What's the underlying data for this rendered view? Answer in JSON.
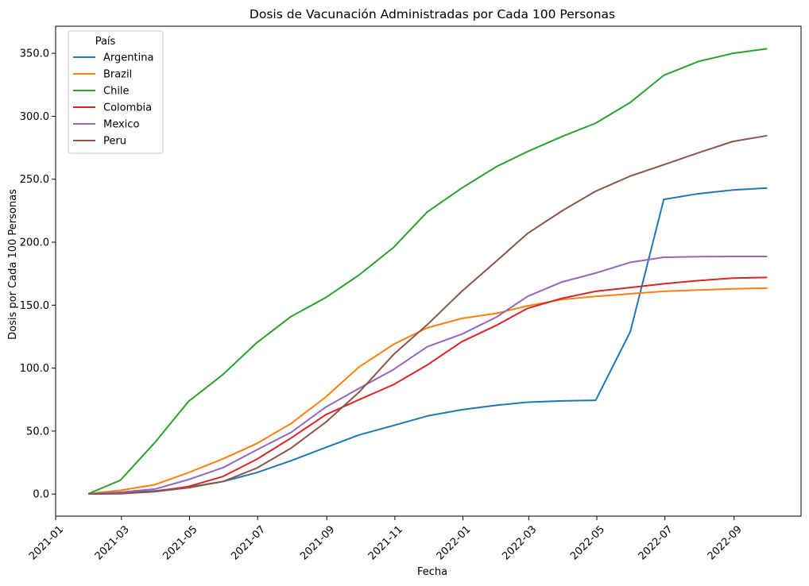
{
  "chart_data": {
    "type": "line",
    "title": "Dosis de Vacunación Administradas por Cada 100 Personas",
    "xlabel": "Fecha",
    "ylabel": "Dosis por Cada 100 Personas",
    "x_ticks": [
      "2021-01",
      "2021-03",
      "2021-05",
      "2021-07",
      "2021-09",
      "2021-11",
      "2022-01",
      "2022-03",
      "2022-05",
      "2022-07",
      "2022-09"
    ],
    "y_ticks": [
      "0.0",
      "50.0",
      "100.0",
      "150.0",
      "200.0",
      "250.0",
      "300.0",
      "350.0"
    ],
    "xlim": [
      "2021-01-01",
      "2022-10-31"
    ],
    "ylim": [
      -17.5,
      371.5
    ],
    "grid": false,
    "legend": {
      "title": "País",
      "position": "top-left"
    },
    "x": [
      "2021-01-31",
      "2021-02-28",
      "2021-03-31",
      "2021-04-30",
      "2021-05-31",
      "2021-06-30",
      "2021-07-31",
      "2021-08-31",
      "2021-09-30",
      "2021-10-31",
      "2021-11-30",
      "2021-12-31",
      "2022-01-31",
      "2022-02-28",
      "2022-03-31",
      "2022-04-30",
      "2022-05-31",
      "2022-06-30",
      "2022-07-31",
      "2022-08-31",
      "2022-09-30"
    ],
    "series": [
      {
        "name": "Argentina",
        "color": "#1f77b4",
        "values": [
          0.2,
          1.0,
          2.5,
          5.5,
          10.0,
          17.0,
          26.5,
          37.0,
          47.0,
          54.5,
          62.0,
          67.0,
          70.5,
          73.0,
          74.0,
          74.5,
          129.0,
          234.0,
          238.5,
          241.5,
          243.0
        ]
      },
      {
        "name": "Brazil",
        "color": "#ff7f0e",
        "values": [
          0.3,
          3.0,
          7.5,
          17.0,
          28.0,
          40.0,
          56.0,
          77.0,
          101.0,
          119.0,
          132.0,
          139.5,
          143.5,
          149.5,
          154.5,
          157.0,
          159.0,
          161.0,
          162.0,
          163.0,
          163.5
        ]
      },
      {
        "name": "Chile",
        "color": "#2ca02c",
        "values": [
          0.5,
          11.0,
          41.0,
          73.5,
          95.0,
          120.0,
          141.0,
          156.0,
          174.0,
          196.0,
          224.0,
          243.0,
          260.0,
          272.0,
          284.0,
          294.5,
          311.0,
          332.5,
          343.5,
          350.0,
          353.5
        ]
      },
      {
        "name": "Colombia",
        "color": "#d62728",
        "values": [
          0.2,
          0.5,
          2.0,
          6.0,
          14.0,
          27.5,
          44.5,
          63.0,
          75.0,
          87.0,
          102.5,
          121.0,
          134.0,
          147.5,
          155.5,
          161.0,
          164.0,
          167.0,
          169.5,
          171.5,
          172.0
        ]
      },
      {
        "name": "Mexico",
        "color": "#9467bd",
        "values": [
          0.2,
          1.5,
          4.0,
          11.5,
          21.0,
          35.0,
          49.0,
          69.0,
          84.0,
          99.0,
          117.0,
          127.0,
          140.5,
          157.0,
          168.5,
          175.5,
          184.0,
          188.0,
          188.5,
          188.7,
          188.7
        ]
      },
      {
        "name": "Peru",
        "color": "#8c564b",
        "values": [
          0.1,
          0.3,
          2.0,
          5.0,
          10.0,
          20.5,
          36.5,
          57.0,
          81.0,
          111.0,
          134.5,
          161.0,
          185.0,
          207.0,
          225.0,
          240.5,
          252.5,
          261.5,
          271.0,
          280.0,
          284.5
        ]
      }
    ]
  }
}
